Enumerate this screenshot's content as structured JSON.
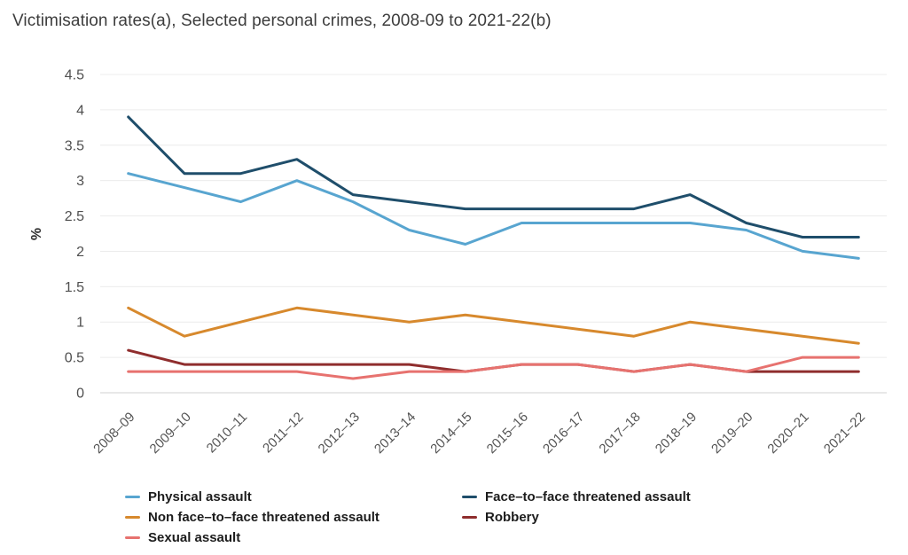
{
  "title": "Victimisation rates(a), Selected personal crimes, 2008-09 to 2021-22(b)",
  "chart_data": {
    "type": "line",
    "title": "Victimisation rates(a), Selected personal crimes, 2008-09 to 2021-22(b)",
    "xlabel": "",
    "ylabel": "%",
    "ylim": [
      0,
      4.5
    ],
    "ytick_step": 0.5,
    "ytick_labels": [
      "0",
      "0.5",
      "1",
      "1.5",
      "2",
      "2.5",
      "3",
      "3.5",
      "4",
      "4.5"
    ],
    "grid": "horizontal",
    "legend_position": "bottom",
    "categories": [
      "2008–09",
      "2009–10",
      "2010–11",
      "2011–12",
      "2012–13",
      "2013–14",
      "2014–15",
      "2015–16",
      "2016–17",
      "2017–18",
      "2018–19",
      "2019–20",
      "2020–21",
      "2021–22"
    ],
    "series": [
      {
        "name": "Physical assault",
        "color": "#58a5d0",
        "values": [
          3.1,
          2.9,
          2.7,
          3.0,
          2.7,
          2.3,
          2.1,
          2.4,
          2.4,
          2.4,
          2.4,
          2.3,
          2.0,
          1.9
        ]
      },
      {
        "name": "Face–to–face threatened assault",
        "color": "#1f4e6b",
        "values": [
          3.9,
          3.1,
          3.1,
          3.3,
          2.8,
          2.7,
          2.6,
          2.6,
          2.6,
          2.6,
          2.8,
          2.4,
          2.2,
          2.2
        ]
      },
      {
        "name": "Non face–to–face threatened assault",
        "color": "#d7892d",
        "values": [
          1.2,
          0.8,
          1.0,
          1.2,
          1.1,
          1.0,
          1.1,
          1.0,
          0.9,
          0.8,
          1.0,
          0.9,
          0.8,
          0.7
        ]
      },
      {
        "name": "Robbery",
        "color": "#8f2d2d",
        "values": [
          0.6,
          0.4,
          0.4,
          0.4,
          0.4,
          0.4,
          0.3,
          0.4,
          0.4,
          0.3,
          0.4,
          0.3,
          0.3,
          0.3
        ]
      },
      {
        "name": "Sexual assault",
        "color": "#e7726f",
        "values": [
          0.3,
          0.3,
          0.3,
          0.3,
          0.2,
          0.3,
          0.3,
          0.4,
          0.4,
          0.3,
          0.4,
          0.3,
          0.5,
          0.5
        ]
      }
    ],
    "colors": {
      "gridline": "#ececec",
      "zero_line": "#d2d2d2",
      "axis_text": "#555555",
      "title_text": "#3d3d3d"
    }
  }
}
